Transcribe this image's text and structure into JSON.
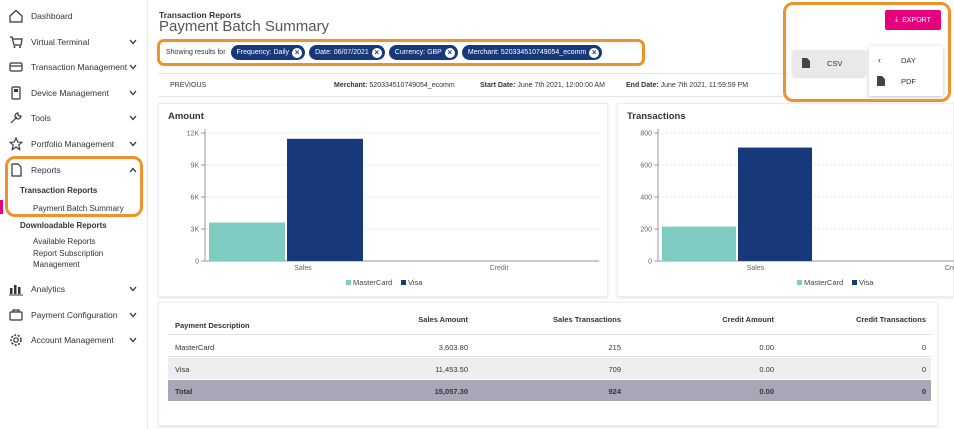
{
  "sidebar": {
    "items": [
      {
        "label": "Dashboard",
        "icon": "home-icon"
      },
      {
        "label": "Virtual Terminal",
        "icon": "cart-icon"
      },
      {
        "label": "Transaction Management",
        "icon": "card-icon"
      },
      {
        "label": "Device Management",
        "icon": "terminal-icon"
      },
      {
        "label": "Tools",
        "icon": "wrench-icon"
      },
      {
        "label": "Portfolio Management",
        "icon": "star-icon"
      },
      {
        "label": "Reports",
        "icon": "document-icon"
      },
      {
        "label": "Analytics",
        "icon": "analytics-icon"
      },
      {
        "label": "Payment Configuration",
        "icon": "config-icon"
      },
      {
        "label": "Account Management",
        "icon": "gear-icon"
      }
    ],
    "reports_sub": {
      "transaction_reports": "Transaction Reports",
      "payment_batch_summary": "Payment Batch Summary",
      "downloadable_reports": "Downloadable Reports",
      "available_reports": "Available Reports",
      "report_subscription_1": "Report Subscription",
      "report_subscription_2": "Management"
    }
  },
  "header": {
    "breadcrumb": "Transaction Reports",
    "title": "Payment Batch Summary"
  },
  "filters": {
    "prefix": "Showing results for",
    "chips": [
      "Frequency: Daily",
      "Date: 06/07/2021",
      "Currency: GBP",
      "Merchant: 520334510749054_ecomm"
    ]
  },
  "infobar": {
    "previous": "PREVIOUS",
    "merchant_label": "Merchant:",
    "merchant_value": "520334510749054_ecomm",
    "start_label": "Start Date:",
    "start_value": "June 7th 2021, 12:00:00 AM",
    "end_label": "End Date:",
    "end_value": "June 7th 2021, 11:59:59 PM"
  },
  "export": {
    "button": "EXPORT",
    "csv": "CSV",
    "day": "DAY",
    "pdf": "PDF"
  },
  "colors": {
    "accent": "#e6007e",
    "mastercard": "#7ecbc1",
    "visa": "#17397a",
    "highlight": "#f0922b"
  },
  "chart_data": [
    {
      "type": "bar",
      "title": "Amount",
      "categories": [
        "Sales",
        "Credit"
      ],
      "series": [
        {
          "name": "MasterCard",
          "values": [
            3603.8,
            0
          ]
        },
        {
          "name": "Visa",
          "values": [
            11453.5,
            0
          ]
        }
      ],
      "yticks": [
        "0",
        "3K",
        "6K",
        "9K",
        "12K"
      ],
      "ylim": [
        0,
        12000
      ],
      "legend": "bottom"
    },
    {
      "type": "bar",
      "title": "Transactions",
      "categories": [
        "Sales",
        "Cre"
      ],
      "series": [
        {
          "name": "MasterCard",
          "values": [
            215,
            0
          ]
        },
        {
          "name": "Visa",
          "values": [
            709,
            0
          ]
        }
      ],
      "yticks": [
        "0",
        "200",
        "400",
        "600",
        "800"
      ],
      "ylim": [
        0,
        800
      ],
      "legend": "bottom"
    }
  ],
  "table": {
    "headers": [
      "Payment Description",
      "Sales Amount",
      "Sales Transactions",
      "Credit Amount",
      "Credit Transactions"
    ],
    "rows": [
      [
        "MasterCard",
        "3,603.80",
        "215",
        "0.00",
        "0"
      ],
      [
        "Visa",
        "11,453.50",
        "709",
        "0.00",
        "0"
      ],
      [
        "Total",
        "15,057.30",
        "924",
        "0.00",
        "0"
      ]
    ]
  }
}
